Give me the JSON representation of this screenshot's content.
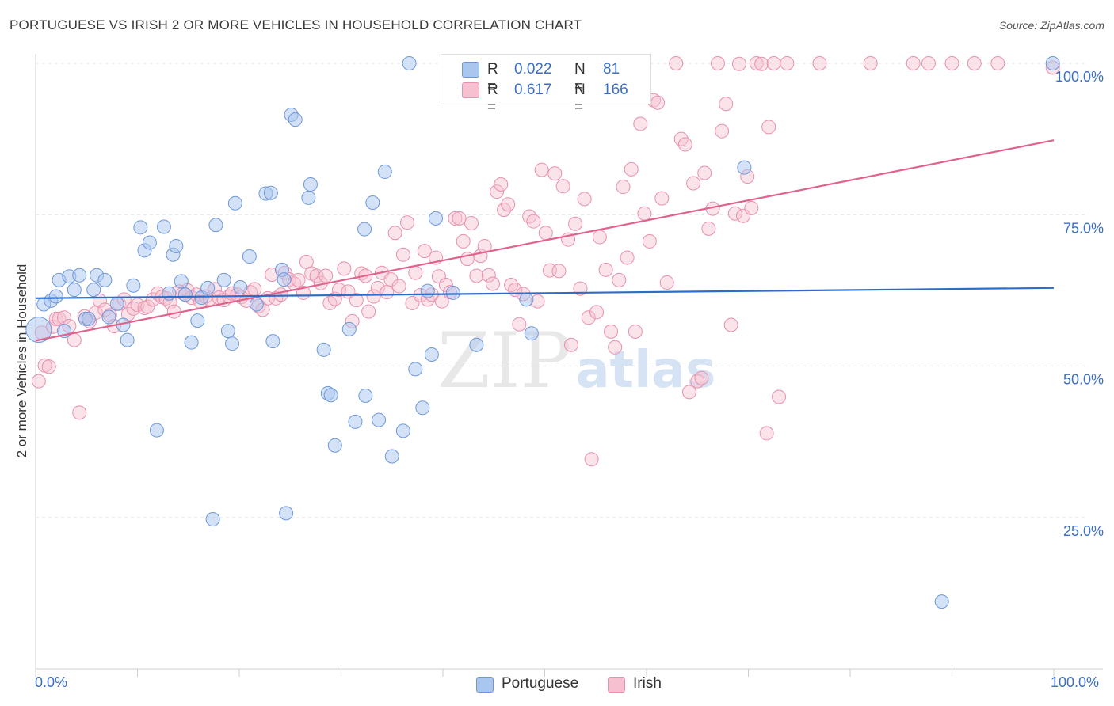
{
  "header": {
    "title": "PORTUGUESE VS IRISH 2 OR MORE VEHICLES IN HOUSEHOLD CORRELATION CHART",
    "source": "Source: ZipAtlas.com"
  },
  "legend": {
    "portuguese": {
      "r_label": "R =",
      "r_value": "0.022",
      "n_label": "N =",
      "n_value": "81"
    },
    "irish": {
      "r_label": "R =",
      "r_value": "0.617",
      "n_label": "N =",
      "n_value": "166"
    }
  },
  "bottom_legend": {
    "portuguese": "Portuguese",
    "irish": "Irish"
  },
  "axes": {
    "x_min_label": "0.0%",
    "x_max_label": "100.0%"
  },
  "watermark": {
    "zip": "ZIP",
    "atlas": "atlas"
  },
  "colors": {
    "portuguese_fill": "#a9c6ef",
    "portuguese_stroke": "#6f98d8",
    "portuguese_line": "#2d6cc8",
    "irish_fill": "#f6c0d1",
    "irish_stroke": "#e890ad",
    "irish_line": "#e0638e",
    "tick_label": "#3b6fc5",
    "grid": "#e3e3e3"
  },
  "chart_data": {
    "type": "scatter",
    "title": "PORTUGUESE VS IRISH 2 OR MORE VEHICLES IN HOUSEHOLD CORRELATION CHART",
    "xlabel": "",
    "ylabel": "2 or more Vehicles in Household",
    "xlim": [
      0,
      100
    ],
    "ylim": [
      0,
      103
    ],
    "y_ticks": [
      25,
      50,
      75,
      100
    ],
    "y_tick_labels": [
      "25.0%",
      "50.0%",
      "75.0%",
      "100.0%"
    ],
    "grid": true,
    "legend_position": "top-center",
    "series": [
      {
        "name": "Portuguese",
        "R": 0.022,
        "N": 81,
        "trend": [
          [
            0,
            61.2
          ],
          [
            100,
            62.9
          ]
        ],
        "points": [
          [
            0.3,
            56.0
          ],
          [
            0.8,
            60.2
          ],
          [
            1.5,
            60.8
          ],
          [
            2.0,
            61.5
          ],
          [
            2.3,
            64.2
          ],
          [
            2.8,
            55.8
          ],
          [
            3.3,
            64.8
          ],
          [
            3.8,
            62.6
          ],
          [
            4.3,
            65.0
          ],
          [
            4.9,
            57.8
          ],
          [
            5.2,
            57.8
          ],
          [
            5.7,
            62.6
          ],
          [
            6.0,
            65.0
          ],
          [
            6.8,
            64.2
          ],
          [
            7.2,
            58.1
          ],
          [
            8.0,
            60.3
          ],
          [
            8.6,
            56.8
          ],
          [
            9.0,
            54.3
          ],
          [
            9.6,
            63.3
          ],
          [
            10.3,
            72.9
          ],
          [
            10.7,
            69.1
          ],
          [
            11.2,
            70.4
          ],
          [
            11.9,
            39.4
          ],
          [
            12.6,
            73.0
          ],
          [
            13.1,
            62.0
          ],
          [
            13.5,
            68.4
          ],
          [
            13.8,
            69.8
          ],
          [
            14.3,
            64.0
          ],
          [
            14.7,
            61.8
          ],
          [
            15.3,
            53.9
          ],
          [
            15.9,
            57.5
          ],
          [
            16.3,
            61.3
          ],
          [
            16.9,
            62.9
          ],
          [
            17.4,
            24.7
          ],
          [
            17.7,
            73.3
          ],
          [
            18.5,
            64.2
          ],
          [
            18.9,
            55.8
          ],
          [
            19.3,
            53.7
          ],
          [
            19.6,
            76.9
          ],
          [
            20.1,
            63.0
          ],
          [
            21.0,
            68.1
          ],
          [
            21.7,
            60.2
          ],
          [
            22.6,
            78.5
          ],
          [
            23.3,
            54.1
          ],
          [
            23.1,
            78.6
          ],
          [
            24.2,
            65.9
          ],
          [
            24.4,
            64.3
          ],
          [
            24.6,
            25.7
          ],
          [
            25.1,
            91.5
          ],
          [
            25.5,
            90.7
          ],
          [
            26.8,
            77.8
          ],
          [
            27.0,
            80.0
          ],
          [
            28.3,
            52.7
          ],
          [
            28.7,
            45.5
          ],
          [
            29.0,
            45.2
          ],
          [
            29.4,
            36.9
          ],
          [
            30.8,
            56.1
          ],
          [
            31.4,
            40.8
          ],
          [
            32.4,
            45.1
          ],
          [
            32.3,
            72.6
          ],
          [
            33.1,
            77.0
          ],
          [
            33.7,
            41.1
          ],
          [
            34.3,
            82.1
          ],
          [
            35.0,
            35.1
          ],
          [
            36.1,
            39.3
          ],
          [
            36.7,
            100.0
          ],
          [
            37.3,
            49.5
          ],
          [
            38.0,
            43.1
          ],
          [
            38.5,
            62.4
          ],
          [
            38.9,
            51.9
          ],
          [
            39.3,
            74.4
          ],
          [
            41.0,
            62.1
          ],
          [
            43.3,
            53.5
          ],
          [
            48.2,
            61.0
          ],
          [
            48.7,
            55.4
          ],
          [
            51.2,
            100.0
          ],
          [
            69.6,
            82.8
          ],
          [
            89.0,
            11.1
          ],
          [
            99.9,
            100.0
          ]
        ]
      },
      {
        "name": "Irish",
        "R": 0.617,
        "N": 166,
        "trend": [
          [
            0,
            54.2
          ],
          [
            100,
            87.3
          ]
        ],
        "points": [
          [
            0.3,
            47.5
          ],
          [
            0.6,
            55.5
          ],
          [
            0.9,
            50.1
          ],
          [
            1.3,
            49.9
          ],
          [
            1.7,
            56.5
          ],
          [
            2.0,
            57.8
          ],
          [
            2.3,
            57.8
          ],
          [
            2.8,
            58.0
          ],
          [
            3.3,
            56.6
          ],
          [
            3.8,
            54.3
          ],
          [
            4.3,
            42.3
          ],
          [
            4.8,
            58.2
          ],
          [
            5.3,
            57.4
          ],
          [
            5.9,
            58.8
          ],
          [
            6.3,
            60.8
          ],
          [
            6.8,
            59.3
          ],
          [
            7.3,
            58.4
          ],
          [
            7.7,
            56.6
          ],
          [
            8.2,
            60.3
          ],
          [
            8.7,
            61.0
          ],
          [
            9.1,
            58.6
          ],
          [
            9.6,
            59.5
          ],
          [
            10.0,
            60.1
          ],
          [
            10.7,
            59.6
          ],
          [
            11.0,
            59.8
          ],
          [
            11.5,
            61.0
          ],
          [
            12.0,
            62.0
          ],
          [
            12.4,
            61.4
          ],
          [
            12.8,
            61.2
          ],
          [
            13.2,
            60.5
          ],
          [
            13.6,
            59.0
          ],
          [
            14.1,
            62.3
          ],
          [
            14.5,
            62.0
          ],
          [
            14.9,
            62.5
          ],
          [
            15.3,
            61.3
          ],
          [
            15.8,
            61.8
          ],
          [
            16.2,
            60.6
          ],
          [
            16.7,
            61.5
          ],
          [
            17.1,
            61.1
          ],
          [
            17.6,
            62.7
          ],
          [
            18.0,
            61.3
          ],
          [
            18.5,
            60.9
          ],
          [
            19.0,
            61.5
          ],
          [
            19.3,
            62.0
          ],
          [
            19.8,
            61.8
          ],
          [
            20.2,
            61.4
          ],
          [
            20.7,
            60.8
          ],
          [
            21.1,
            62.2
          ],
          [
            21.5,
            62.7
          ],
          [
            21.9,
            59.9
          ],
          [
            22.3,
            59.3
          ],
          [
            22.8,
            61.2
          ],
          [
            23.2,
            65.1
          ],
          [
            23.6,
            61.2
          ],
          [
            24.1,
            61.8
          ],
          [
            24.5,
            65.4
          ],
          [
            24.9,
            64.3
          ],
          [
            25.4,
            63.6
          ],
          [
            25.8,
            64.2
          ],
          [
            26.3,
            62.1
          ],
          [
            26.6,
            67.2
          ],
          [
            27.1,
            65.3
          ],
          [
            27.6,
            64.9
          ],
          [
            28.0,
            63.7
          ],
          [
            28.5,
            64.9
          ],
          [
            28.9,
            60.4
          ],
          [
            29.4,
            61.1
          ],
          [
            29.8,
            62.6
          ],
          [
            30.3,
            66.1
          ],
          [
            30.7,
            62.3
          ],
          [
            31.1,
            57.4
          ],
          [
            31.5,
            60.9
          ],
          [
            32.0,
            65.3
          ],
          [
            32.4,
            64.9
          ],
          [
            32.7,
            59.0
          ],
          [
            33.2,
            61.5
          ],
          [
            33.6,
            62.9
          ],
          [
            34.0,
            65.4
          ],
          [
            34.5,
            62.2
          ],
          [
            34.9,
            64.3
          ],
          [
            35.3,
            72.0
          ],
          [
            35.7,
            63.2
          ],
          [
            36.1,
            68.4
          ],
          [
            36.5,
            73.7
          ],
          [
            37.0,
            60.4
          ],
          [
            37.3,
            65.4
          ],
          [
            37.8,
            61.7
          ],
          [
            38.2,
            69.0
          ],
          [
            38.5,
            61.0
          ],
          [
            38.9,
            61.8
          ],
          [
            39.3,
            67.9
          ],
          [
            39.6,
            64.8
          ],
          [
            39.9,
            60.7
          ],
          [
            40.3,
            63.4
          ],
          [
            40.7,
            62.2
          ],
          [
            41.2,
            74.4
          ],
          [
            41.6,
            74.4
          ],
          [
            42.0,
            70.6
          ],
          [
            42.4,
            67.7
          ],
          [
            42.8,
            73.6
          ],
          [
            43.3,
            64.9
          ],
          [
            43.7,
            68.2
          ],
          [
            44.1,
            69.8
          ],
          [
            44.5,
            65.0
          ],
          [
            44.9,
            63.6
          ],
          [
            45.3,
            78.8
          ],
          [
            45.7,
            80.0
          ],
          [
            46.0,
            75.8
          ],
          [
            46.4,
            76.7
          ],
          [
            46.7,
            63.4
          ],
          [
            47.1,
            62.6
          ],
          [
            47.5,
            56.9
          ],
          [
            47.9,
            61.9
          ],
          [
            48.5,
            74.7
          ],
          [
            48.9,
            73.9
          ],
          [
            49.3,
            60.7
          ],
          [
            49.7,
            82.4
          ],
          [
            50.1,
            72.0
          ],
          [
            50.5,
            65.8
          ],
          [
            51.0,
            81.8
          ],
          [
            51.4,
            65.7
          ],
          [
            51.8,
            79.7
          ],
          [
            52.3,
            70.9
          ],
          [
            52.6,
            53.5
          ],
          [
            53.0,
            73.5
          ],
          [
            53.5,
            62.8
          ],
          [
            53.9,
            77.6
          ],
          [
            54.3,
            58.0
          ],
          [
            54.6,
            34.6
          ],
          [
            55.1,
            58.9
          ],
          [
            55.4,
            71.3
          ],
          [
            56.0,
            65.9
          ],
          [
            56.5,
            55.7
          ],
          [
            56.9,
            53.1
          ],
          [
            57.3,
            64.2
          ],
          [
            57.7,
            79.6
          ],
          [
            58.1,
            67.9
          ],
          [
            58.5,
            82.5
          ],
          [
            58.9,
            55.7
          ],
          [
            59.4,
            90.0
          ],
          [
            59.8,
            75.2
          ],
          [
            60.3,
            70.6
          ],
          [
            60.7,
            93.9
          ],
          [
            61.1,
            93.5
          ],
          [
            61.5,
            77.7
          ],
          [
            62.0,
            63.8
          ],
          [
            62.9,
            100.0
          ],
          [
            63.4,
            87.5
          ],
          [
            63.8,
            86.6
          ],
          [
            64.2,
            45.7
          ],
          [
            64.6,
            80.2
          ],
          [
            65.0,
            47.5
          ],
          [
            65.4,
            48.0
          ],
          [
            65.7,
            81.9
          ],
          [
            66.1,
            72.7
          ],
          [
            66.5,
            76.0
          ],
          [
            67.0,
            100.0
          ],
          [
            67.4,
            88.8
          ],
          [
            67.8,
            93.3
          ],
          [
            68.3,
            56.8
          ],
          [
            68.7,
            75.2
          ],
          [
            69.1,
            99.9
          ],
          [
            69.5,
            74.8
          ],
          [
            69.9,
            81.3
          ],
          [
            70.3,
            76.1
          ],
          [
            70.8,
            100.0
          ],
          [
            71.3,
            99.9
          ],
          [
            71.8,
            38.9
          ],
          [
            72.0,
            89.5
          ],
          [
            72.5,
            100.0
          ],
          [
            73.0,
            44.9
          ],
          [
            73.8,
            100.0
          ],
          [
            77.0,
            100.0
          ],
          [
            82.0,
            100.0
          ],
          [
            86.2,
            100.0
          ],
          [
            87.7,
            100.0
          ],
          [
            90.0,
            100.0
          ],
          [
            92.2,
            100.0
          ],
          [
            94.5,
            100.0
          ],
          [
            99.9,
            99.3
          ]
        ]
      }
    ]
  }
}
